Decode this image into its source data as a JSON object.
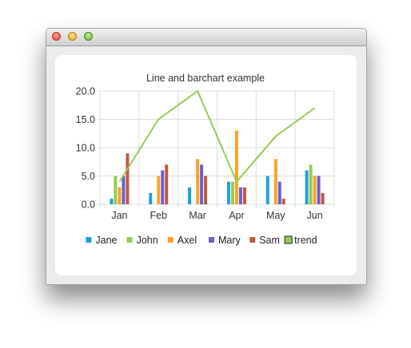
{
  "window": {
    "controls": [
      "close-button",
      "minimize-button",
      "maximize-button"
    ]
  },
  "chart_data": {
    "type": "bar",
    "title": "Line and barchart example",
    "xlabel": "",
    "ylabel": "",
    "categories": [
      "Jan",
      "Feb",
      "Mar",
      "Apr",
      "May",
      "Jun"
    ],
    "ylim": [
      0,
      20
    ],
    "yticks": [
      "0.0",
      "5.0",
      "10.0",
      "15.0",
      "20.0"
    ],
    "grid": true,
    "legend_position": "bottom",
    "series": [
      {
        "name": "Jane",
        "kind": "bar",
        "color": "#209fdf",
        "values": [
          1,
          2,
          3,
          4,
          5,
          6
        ]
      },
      {
        "name": "John",
        "kind": "bar",
        "color": "#99ca53",
        "values": [
          5,
          0,
          0,
          4,
          0,
          7
        ]
      },
      {
        "name": "Axel",
        "kind": "bar",
        "color": "#f6a625",
        "values": [
          3,
          5,
          8,
          13,
          8,
          5
        ]
      },
      {
        "name": "Mary",
        "kind": "bar",
        "color": "#6d5fd5",
        "values": [
          5,
          6,
          7,
          3,
          4,
          5
        ]
      },
      {
        "name": "Sam",
        "kind": "bar",
        "color": "#bf593e",
        "values": [
          9,
          7,
          5,
          3,
          1,
          2
        ]
      },
      {
        "name": "trend",
        "kind": "line",
        "color": "#99ca53",
        "values": [
          4,
          15,
          20,
          4,
          12,
          17
        ]
      }
    ]
  }
}
